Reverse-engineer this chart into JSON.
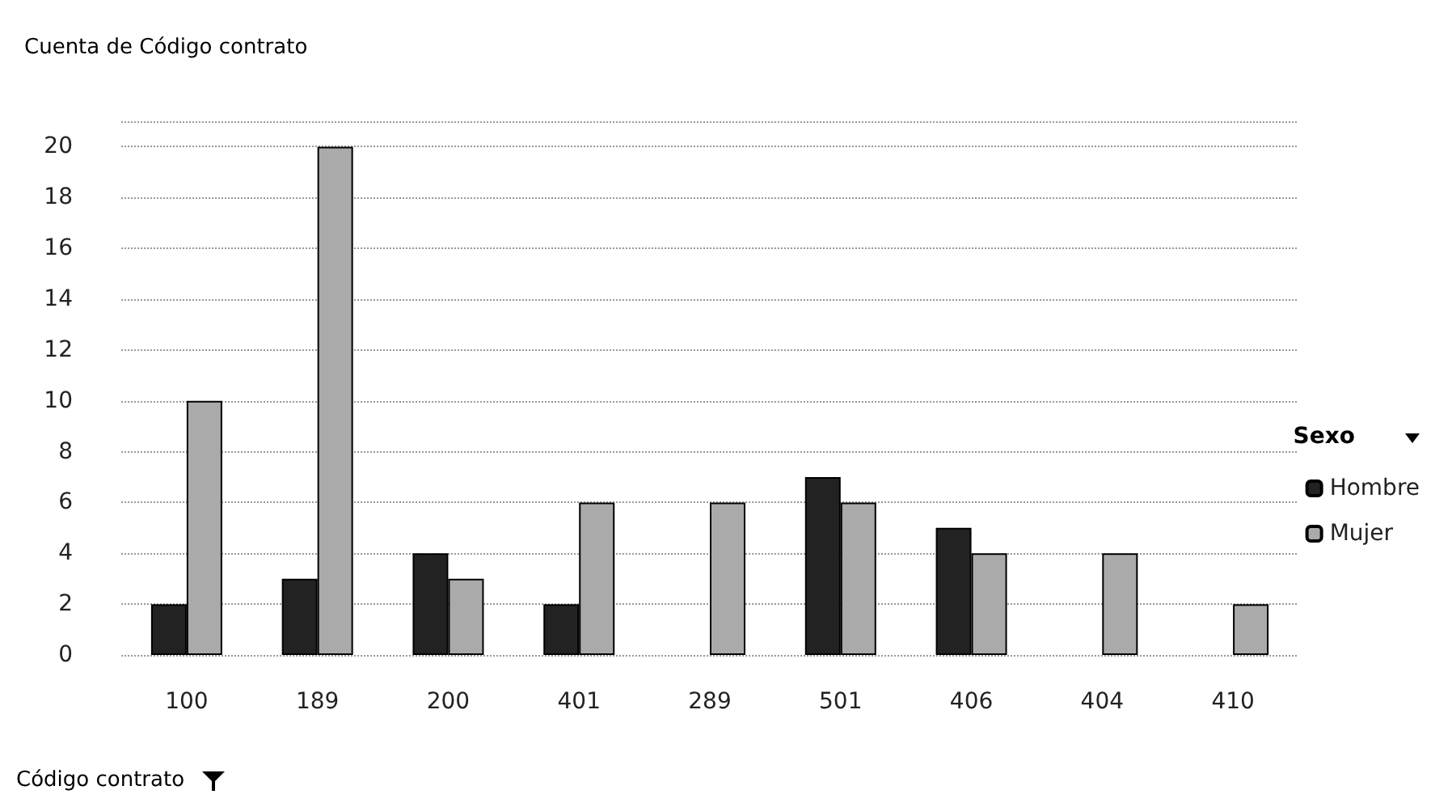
{
  "chart_data": {
    "type": "bar",
    "title": "Cuenta de Código contrato",
    "xlabel": "Código contrato",
    "legend_title": "Sexo",
    "categories": [
      "100",
      "189",
      "200",
      "401",
      "289",
      "501",
      "406",
      "404",
      "410"
    ],
    "series": [
      {
        "name": "Hombre",
        "color": "#222222",
        "values": [
          2,
          3,
          4,
          2,
          null,
          7,
          5,
          null,
          null
        ]
      },
      {
        "name": "Mujer",
        "color": "#aaaaaa",
        "values": [
          10,
          20,
          3,
          6,
          6,
          6,
          4,
          4,
          2
        ]
      }
    ],
    "ylim": [
      0,
      21
    ],
    "yticks": [
      0,
      2,
      4,
      6,
      8,
      10,
      12,
      14,
      16,
      18,
      20,
      {
        "value": 21,
        "label": null
      }
    ],
    "grid": "y",
    "legend": "right"
  }
}
